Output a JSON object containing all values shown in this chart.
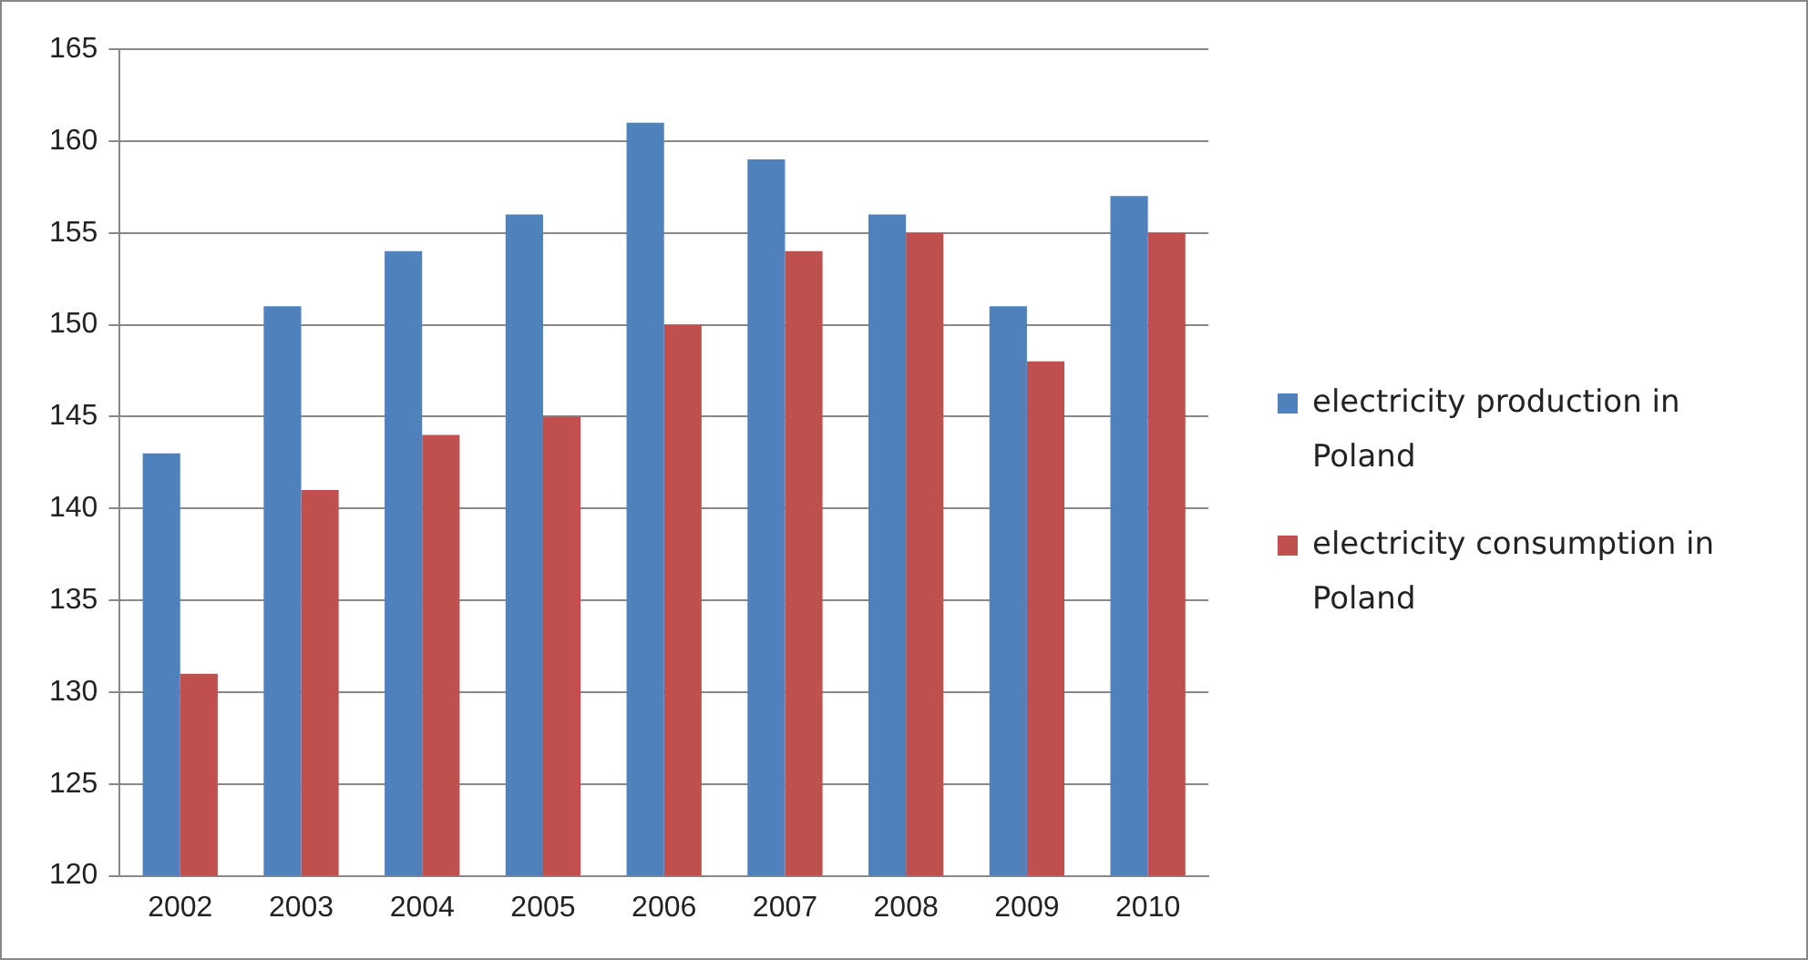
{
  "chart_data": {
    "type": "bar",
    "categories": [
      "2002",
      "2003",
      "2004",
      "2005",
      "2006",
      "2007",
      "2008",
      "2009",
      "2010"
    ],
    "series": [
      {
        "name": "electricity production in Poland",
        "color": "#4f81bd",
        "values": [
          143,
          151,
          154,
          156,
          161,
          159,
          156,
          151,
          157
        ]
      },
      {
        "name": "electricity consumption in Poland",
        "color": "#c0504d",
        "values": [
          131,
          141,
          144,
          145,
          150,
          154,
          155,
          148,
          155
        ]
      }
    ],
    "ylim": [
      120,
      165
    ],
    "yticks": [
      120,
      125,
      130,
      135,
      140,
      145,
      150,
      155,
      160,
      165
    ],
    "grid": "y",
    "legend": "right"
  }
}
